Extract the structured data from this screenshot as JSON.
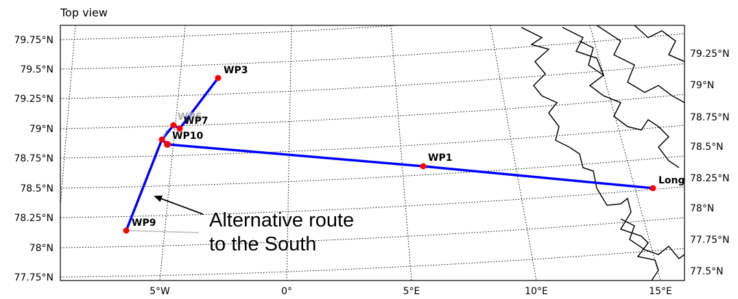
{
  "view": {
    "title": "Top view"
  },
  "map": {
    "lat_ticks_left": [
      "79.75°N",
      "79.5°N",
      "79.25°N",
      "79°N",
      "78.75°N",
      "78.5°N",
      "78.25°N",
      "78°N",
      "77.75°N"
    ],
    "lat_ticks_right": [
      "79.25°N",
      "79°N",
      "78.75°N",
      "78.5°N",
      "78.25°N",
      "78°N",
      "77.75°N",
      "77.5°N"
    ],
    "lon_ticks_bottom": [
      "5°W",
      "0°",
      "5°E",
      "10°E",
      "15°E"
    ],
    "colors": {
      "route": "#0000ff",
      "waypoint": "#ff0000",
      "gridline": "#000000",
      "coastline": "#000000",
      "annotation_arrow": "#000000"
    },
    "waypoints": [
      {
        "label": "WP3"
      },
      {
        "label": "WP6"
      },
      {
        "label": "WP7"
      },
      {
        "label": "WP10"
      },
      {
        "label": "WP1"
      },
      {
        "label": "Long"
      },
      {
        "label": "WP9"
      }
    ],
    "annotation": {
      "line1": "Alternative route",
      "line2": "to the South"
    }
  }
}
